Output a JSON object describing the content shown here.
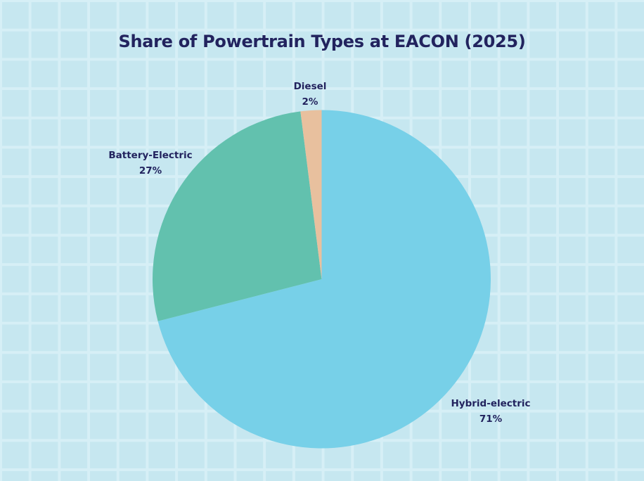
{
  "chart_data": {
    "type": "pie",
    "title": "Share of Powertrain Types at EACON (2025)",
    "categories": [
      "Hybrid-electric",
      "Battery-Electric",
      "Diesel"
    ],
    "values": [
      71,
      27,
      2
    ],
    "labels": [
      "71%",
      "27%",
      "2%"
    ],
    "colors": [
      "#77d0e8",
      "#62c1ae",
      "#e8c09e"
    ],
    "start_angle": "top (12 o'clock), clockwise",
    "legend": "none (direct labels)",
    "background": {
      "color": "#c6e7f0",
      "grid": true,
      "grid_color": "#d6eff6"
    }
  },
  "title": "Share of Powertrain Types at EACON (2025)",
  "slices": [
    {
      "name": "Hybrid-electric",
      "pct": "71%",
      "color": "#77d0e8"
    },
    {
      "name": "Battery-Electric",
      "pct": "27%",
      "color": "#62c1ae"
    },
    {
      "name": "Diesel",
      "pct": "2%",
      "color": "#e8c09e"
    }
  ]
}
